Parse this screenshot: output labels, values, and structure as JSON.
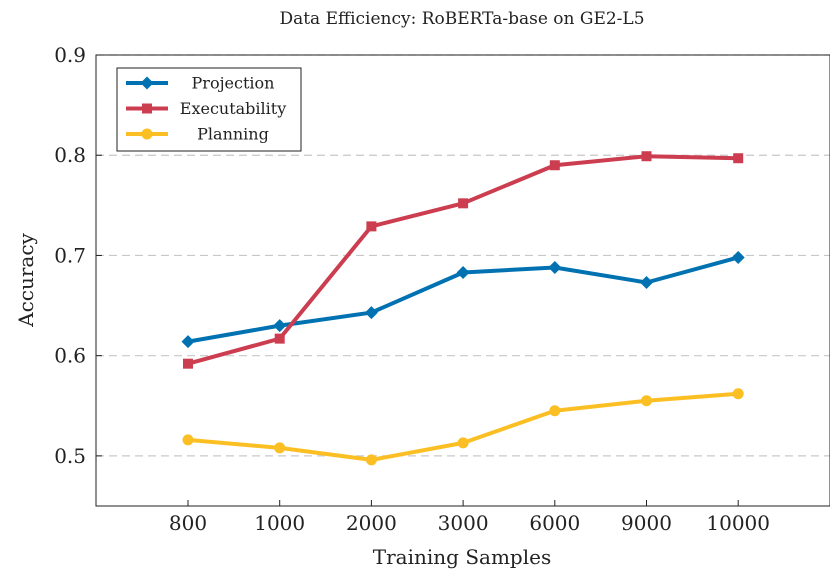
{
  "chart_data": {
    "type": "line",
    "title": "Data Efficiency: RoBERTa-base on GE2-L5",
    "xlabel": "Training Samples",
    "ylabel": "Accuracy",
    "categories": [
      "800",
      "1000",
      "2000",
      "3000",
      "6000",
      "9000",
      "10000"
    ],
    "ylim": [
      0.45,
      0.9
    ],
    "yticks": [
      "0.5",
      "0.6",
      "0.7",
      "0.8",
      "0.9"
    ],
    "grid": "horizontal dashed",
    "legend_position": "top-left",
    "series": [
      {
        "name": "Projection",
        "color": "#0072b2",
        "marker": "diamond",
        "values": [
          0.614,
          0.63,
          0.643,
          0.683,
          0.688,
          0.673,
          0.698
        ]
      },
      {
        "name": "Executability",
        "color": "#cc3d50",
        "marker": "square",
        "values": [
          0.592,
          0.617,
          0.729,
          0.752,
          0.79,
          0.799,
          0.797
        ]
      },
      {
        "name": "Planning",
        "color": "#fbbf24",
        "marker": "circle",
        "values": [
          0.516,
          0.508,
          0.496,
          0.513,
          0.545,
          0.555,
          0.562
        ]
      }
    ]
  }
}
